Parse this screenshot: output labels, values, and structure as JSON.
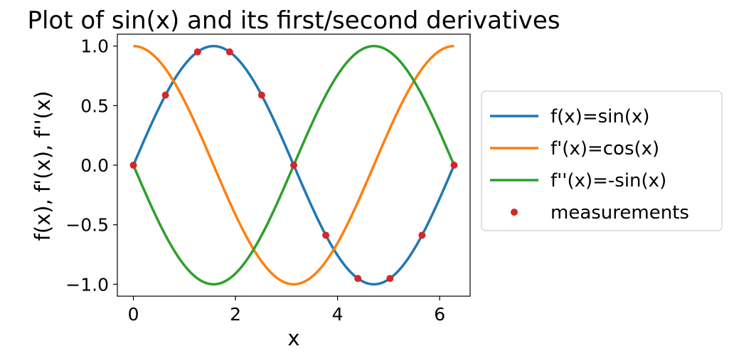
{
  "chart_data": {
    "type": "line",
    "title": "Plot of sin(x) and its first/second derivatives",
    "xlabel": "x",
    "ylabel": "f(x), f'(x), f''(x)",
    "xlim": [
      -0.314,
      6.597
    ],
    "ylim": [
      -1.1,
      1.1
    ],
    "xticks": [
      0,
      2,
      4,
      6
    ],
    "xtick_labels": [
      "0",
      "2",
      "4",
      "6"
    ],
    "yticks": [
      -1.0,
      -0.5,
      0.0,
      0.5,
      1.0
    ],
    "ytick_labels": [
      "−1.0",
      "−0.5",
      "0.0",
      "0.5",
      "1.0"
    ],
    "grid": false,
    "legend_position": "outside-right",
    "series": [
      {
        "name": "f(x)=sin(x)",
        "function": "sin",
        "x_range": [
          0,
          6.283
        ],
        "color": "#1f77b4",
        "style": "line"
      },
      {
        "name": "f'(x)=cos(x)",
        "function": "cos",
        "x_range": [
          0,
          6.283
        ],
        "color": "#ff7f0e",
        "style": "line"
      },
      {
        "name": "f''(x)=-sin(x)",
        "function": "-sin",
        "x_range": [
          0,
          6.283
        ],
        "color": "#2ca02c",
        "style": "line"
      },
      {
        "name": "measurements",
        "style": "markers",
        "color": "#d62728",
        "points": [
          {
            "x": 0.0,
            "y": 0.0
          },
          {
            "x": 0.628,
            "y": 0.588
          },
          {
            "x": 1.257,
            "y": 0.951
          },
          {
            "x": 1.885,
            "y": 0.951
          },
          {
            "x": 2.513,
            "y": 0.588
          },
          {
            "x": 3.142,
            "y": 0.0
          },
          {
            "x": 3.77,
            "y": -0.588
          },
          {
            "x": 4.398,
            "y": -0.951
          },
          {
            "x": 5.027,
            "y": -0.951
          },
          {
            "x": 5.655,
            "y": -0.588
          },
          {
            "x": 6.283,
            "y": 0.0
          }
        ]
      }
    ]
  }
}
